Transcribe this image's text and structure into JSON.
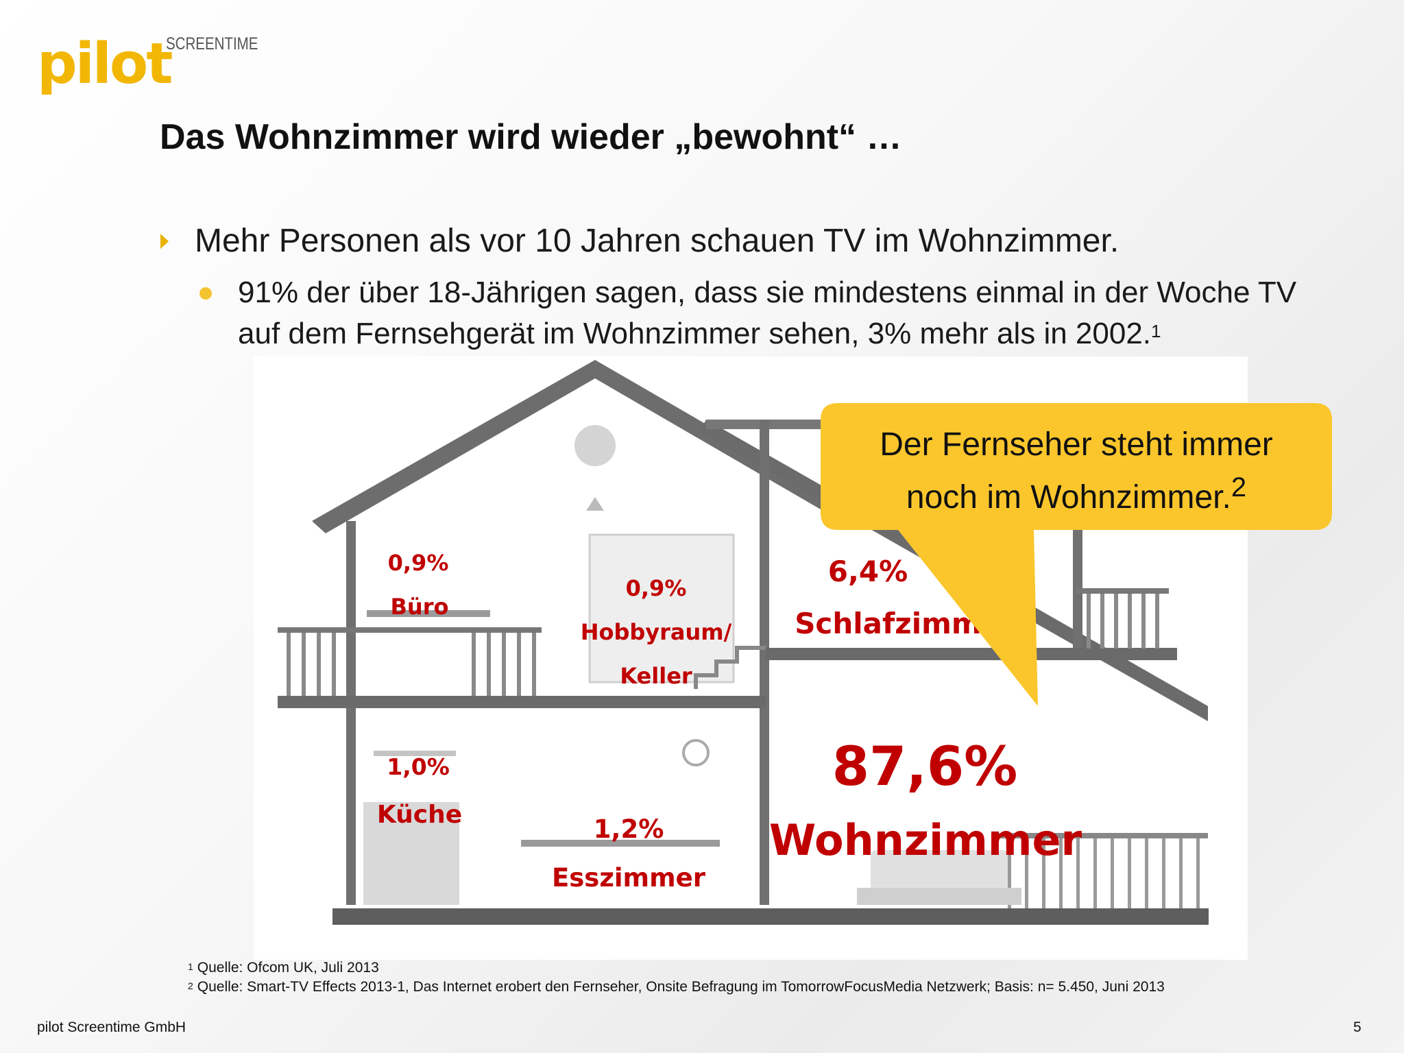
{
  "logo": {
    "word": "pilot",
    "tagline": "SCREENTIME"
  },
  "title": "Das Wohnzimmer wird wieder „bewohnt“ …",
  "bullets": {
    "level1": "Mehr Personen als vor 10 Jahren schauen TV im Wohnzimmer.",
    "level2_line1": "91% der über 18-Jährigen sagen, dass sie mindestens einmal in der Woche TV",
    "level2_line2": "auf dem Fernsehgerät im Wohnzimmer sehen, 3% mehr als in 2002.",
    "level2_footnote": "1"
  },
  "rooms": {
    "buero": {
      "value": "0,9%",
      "label": "Büro"
    },
    "hobby": {
      "value": "0,9%",
      "label1": "Hobbyraum/",
      "label2": "Keller"
    },
    "schlaf": {
      "value": "6,4%",
      "label": "Schlafzimmer"
    },
    "kueche": {
      "value": "1,0%",
      "label": "Küche"
    },
    "ess": {
      "value": "1,2%",
      "label": "Esszimmer"
    },
    "wohn": {
      "value": "87,6%",
      "label": "Wohnzimmer"
    }
  },
  "bubble": {
    "line1": "Der Fernseher steht immer",
    "line2": "noch im Wohnzimmer.",
    "footnote": "2",
    "color": "#fbc62c"
  },
  "footnotes": {
    "one_mark": "1",
    "one_text": "Quelle: Ofcom UK, Juli 2013",
    "two_mark": "2",
    "two_text": "Quelle: Smart-TV Effects 2013-1, Das Internet erobert den Fernseher, Onsite Befragung im TomorrowFocusMedia Netzwerk; Basis: n= 5.450, Juni 2013"
  },
  "footer": {
    "company": "pilot Screentime GmbH",
    "page": "5"
  },
  "colors": {
    "accent": "#f2b705",
    "label_red": "#c00000",
    "house_gray": "#6b6b6b"
  }
}
